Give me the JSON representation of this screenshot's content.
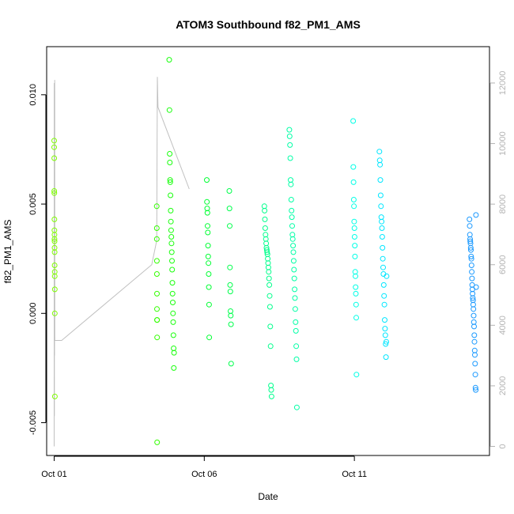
{
  "chart_data": {
    "type": "scatter",
    "title": "ATOM3 Southbound f82_PM1_AMS",
    "xlabel": "Date",
    "ylabel": "f82_PM1_AMS",
    "x_domain": [
      "2011-09-30T18:00",
      "2011-10-15T12:00"
    ],
    "ylim": [
      -0.0065,
      0.0122
    ],
    "y_ticks": [
      -0.005,
      0.0,
      0.005,
      0.01
    ],
    "y_tick_labels": [
      "-0.005",
      "0.000",
      "0.005",
      "0.010"
    ],
    "x_ticks": [
      "2011-10-01",
      "2011-10-06",
      "2011-10-11"
    ],
    "x_tick_labels": [
      "Oct 01",
      "Oct 06",
      "Oct 11"
    ],
    "y2lim": [
      -300,
      13200
    ],
    "y2_ticks": [
      0,
      2000,
      4000,
      6000,
      8000,
      10000,
      12000
    ],
    "y2_tick_labels": [
      "0",
      "2000",
      "4000",
      "6000",
      "8000",
      "10000",
      "12000"
    ],
    "y2_color": "#b3b3b3",
    "grid": false,
    "colors": {
      "Oct 01": "#7fff00",
      "Oct 04": "#33ff00",
      "Oct 05": "#19ff0d",
      "Oct 06": "#00ff33",
      "Oct 07": "#00ff4c",
      "Oct 08": "#00ff8c",
      "Oct 09": "#00ffa6",
      "Oct 11": "#00ffe6",
      "Oct 12": "#00e6ff",
      "Oct 14": "#1a99ff"
    },
    "series": [
      {
        "key": "Oct 01",
        "x": [
          "2011-10-01T00:00",
          "2011-10-01T00:02",
          "2011-10-01T00:04",
          "2011-10-01T00:06",
          "2011-10-01T00:08",
          "2011-10-01T00:10",
          "2011-10-01T00:12",
          "2011-10-01T00:14",
          "2011-10-01T00:16",
          "2011-10-01T00:18",
          "2011-10-01T00:20",
          "2011-10-01T00:22",
          "2011-10-01T00:24",
          "2011-10-01T00:26",
          "2011-10-01T00:28",
          "2011-10-01T00:30",
          "2011-10-01T00:32",
          "2011-10-01T00:34"
        ],
        "y": [
          0.0079,
          0.0076,
          0.0071,
          0.0056,
          0.0055,
          0.0043,
          0.0038,
          0.0036,
          0.0034,
          0.0033,
          0.003,
          0.0028,
          0.0022,
          0.0019,
          0.0017,
          0.0011,
          0.0,
          -0.0038
        ]
      },
      {
        "key": "Oct 04",
        "x": [
          "2011-10-04T10:00",
          "2011-10-04T10:02",
          "2011-10-04T10:04",
          "2011-10-04T10:06",
          "2011-10-04T10:08",
          "2011-10-04T10:10",
          "2011-10-04T10:12",
          "2011-10-04T10:14",
          "2011-10-04T10:16",
          "2011-10-04T10:18",
          "2011-10-04T10:20"
        ],
        "y": [
          0.0049,
          0.0039,
          0.0034,
          0.0024,
          0.0018,
          0.0009,
          0.0002,
          -0.0003,
          -0.0003,
          -0.0011,
          -0.0059
        ]
      },
      {
        "key": "Oct 05",
        "x": [
          "2011-10-04T20:00",
          "2011-10-04T20:10",
          "2011-10-04T20:20",
          "2011-10-04T20:30",
          "2011-10-04T20:40",
          "2011-10-04T20:50",
          "2011-10-04T21:00",
          "2011-10-04T21:10",
          "2011-10-04T21:20",
          "2011-10-04T21:30",
          "2011-10-04T21:40",
          "2011-10-04T21:50",
          "2011-10-04T22:00",
          "2011-10-04T22:10",
          "2011-10-04T22:20",
          "2011-10-04T22:30",
          "2011-10-04T22:40",
          "2011-10-04T22:50",
          "2011-10-04T23:00",
          "2011-10-04T23:10",
          "2011-10-04T23:20",
          "2011-10-04T23:30",
          "2011-10-04T23:40",
          "2011-10-04T23:50"
        ],
        "y": [
          0.0116,
          0.0093,
          0.0073,
          0.0069,
          0.0061,
          0.006,
          0.0054,
          0.0047,
          0.0042,
          0.0038,
          0.0035,
          0.0032,
          0.0028,
          0.0024,
          0.002,
          0.0014,
          0.0009,
          0.0005,
          0.0,
          -0.0004,
          -0.001,
          -0.0016,
          -0.0025,
          -0.0018
        ]
      },
      {
        "key": "Oct 06",
        "x": [
          "2011-10-06T02:00",
          "2011-10-06T02:10",
          "2011-10-06T02:20",
          "2011-10-06T02:30",
          "2011-10-06T02:40",
          "2011-10-06T02:50",
          "2011-10-06T03:00",
          "2011-10-06T03:10",
          "2011-10-06T03:20",
          "2011-10-06T03:30",
          "2011-10-06T03:40",
          "2011-10-06T03:50",
          "2011-10-06T04:00"
        ],
        "y": [
          0.0061,
          0.0051,
          0.0048,
          0.0046,
          0.004,
          0.0037,
          0.0031,
          0.0026,
          0.0023,
          0.0018,
          0.0012,
          0.0004,
          -0.0011
        ]
      },
      {
        "key": "Oct 07",
        "x": [
          "2011-10-06T20:00",
          "2011-10-06T20:10",
          "2011-10-06T20:20",
          "2011-10-06T20:30",
          "2011-10-06T20:40",
          "2011-10-06T20:50",
          "2011-10-06T21:00",
          "2011-10-06T21:10",
          "2011-10-06T21:20",
          "2011-10-06T21:30"
        ],
        "y": [
          0.0056,
          0.0048,
          0.004,
          0.0021,
          0.0013,
          0.001,
          0.0001,
          -0.0001,
          -0.0005,
          -0.0023
        ]
      },
      {
        "key": "Oct 08",
        "x": [
          "2011-10-08T00:00",
          "2011-10-08T00:15",
          "2011-10-08T00:30",
          "2011-10-08T00:45",
          "2011-10-08T01:00",
          "2011-10-08T01:15",
          "2011-10-08T01:30",
          "2011-10-08T01:45",
          "2011-10-08T02:00",
          "2011-10-08T02:15",
          "2011-10-08T02:30",
          "2011-10-08T02:45",
          "2011-10-08T03:00",
          "2011-10-08T03:15",
          "2011-10-08T03:30",
          "2011-10-08T03:45",
          "2011-10-08T04:00",
          "2011-10-08T04:15",
          "2011-10-08T04:30",
          "2011-10-08T04:45",
          "2011-10-08T05:00",
          "2011-10-08T05:15",
          "2011-10-08T05:30",
          "2011-10-08T05:45"
        ],
        "y": [
          0.0049,
          0.0047,
          0.0043,
          0.0039,
          0.0036,
          0.0034,
          0.0032,
          0.003,
          0.0029,
          0.0028,
          0.0027,
          0.0025,
          0.0023,
          0.0021,
          0.0019,
          0.0016,
          0.0013,
          0.0008,
          0.0003,
          -0.0006,
          -0.0015,
          -0.0033,
          -0.0035,
          -0.0038
        ]
      },
      {
        "key": "Oct 09",
        "x": [
          "2011-10-08T20:00",
          "2011-10-08T20:15",
          "2011-10-08T20:30",
          "2011-10-08T20:45",
          "2011-10-08T21:00",
          "2011-10-08T21:15",
          "2011-10-08T21:30",
          "2011-10-08T21:45",
          "2011-10-08T22:00",
          "2011-10-08T22:15",
          "2011-10-08T22:30",
          "2011-10-08T22:45",
          "2011-10-08T23:00",
          "2011-10-08T23:15",
          "2011-10-08T23:30",
          "2011-10-08T23:45",
          "2011-10-09T00:00",
          "2011-10-09T00:15",
          "2011-10-09T00:30",
          "2011-10-09T00:45",
          "2011-10-09T01:00",
          "2011-10-09T01:15",
          "2011-10-09T01:30",
          "2011-10-09T01:45",
          "2011-10-09T02:00"
        ],
        "y": [
          0.0084,
          0.0081,
          0.0077,
          0.0071,
          0.0061,
          0.0059,
          0.0052,
          0.0047,
          0.0044,
          0.004,
          0.0036,
          0.0034,
          0.0031,
          0.0028,
          0.0024,
          0.002,
          0.0016,
          0.0011,
          0.0007,
          0.0002,
          -0.0004,
          -0.0008,
          -0.0015,
          -0.0021,
          -0.0043
        ]
      },
      {
        "key": "Oct 11",
        "x": [
          "2011-10-10T23:00",
          "2011-10-10T23:10",
          "2011-10-10T23:20",
          "2011-10-10T23:30",
          "2011-10-10T23:40",
          "2011-10-10T23:50",
          "2011-10-11T00:00",
          "2011-10-11T00:10",
          "2011-10-11T00:20",
          "2011-10-11T00:30",
          "2011-10-11T00:40",
          "2011-10-11T00:50",
          "2011-10-11T01:00",
          "2011-10-11T01:10",
          "2011-10-11T01:20",
          "2011-10-11T01:30",
          "2011-10-11T01:40"
        ],
        "y": [
          0.0088,
          0.0067,
          0.006,
          0.0052,
          0.0049,
          0.0042,
          0.0039,
          0.0035,
          0.0031,
          0.0026,
          0.0019,
          0.0017,
          0.0012,
          0.0009,
          0.0004,
          -0.0002,
          -0.0028
        ]
      },
      {
        "key": "Oct 12",
        "x": [
          "2011-10-11T20:00",
          "2011-10-11T20:15",
          "2011-10-11T20:30",
          "2011-10-11T20:45",
          "2011-10-11T21:00",
          "2011-10-11T21:15",
          "2011-10-11T21:30",
          "2011-10-11T21:45",
          "2011-10-11T22:00",
          "2011-10-11T22:15",
          "2011-10-11T22:30",
          "2011-10-11T22:45",
          "2011-10-11T23:00",
          "2011-10-11T23:15",
          "2011-10-11T23:30",
          "2011-10-11T23:45",
          "2011-10-12T00:00",
          "2011-10-12T00:15",
          "2011-10-12T00:30",
          "2011-10-12T00:45",
          "2011-10-12T01:00",
          "2011-10-12T01:15",
          "2011-10-12T01:30",
          "2011-10-12T01:45"
        ],
        "y": [
          0.0074,
          0.007,
          0.0068,
          0.0061,
          0.0054,
          0.0049,
          0.0044,
          0.0042,
          0.0039,
          0.0035,
          0.003,
          0.0025,
          0.0021,
          0.0018,
          0.0013,
          0.0008,
          0.0004,
          -0.0003,
          -0.0007,
          -0.001,
          -0.0014,
          -0.002,
          -0.0013,
          0.0017
        ]
      },
      {
        "key": "Oct 14",
        "x": [
          "2011-10-14T20:00",
          "2011-10-14T20:10",
          "2011-10-14T20:20",
          "2011-10-14T20:30",
          "2011-10-14T20:40",
          "2011-10-14T20:50",
          "2011-10-14T21:00",
          "2011-10-14T21:10",
          "2011-10-14T21:20",
          "2011-10-14T21:30",
          "2011-10-14T21:40",
          "2011-10-14T21:50",
          "2011-10-14T22:00",
          "2011-10-14T22:10",
          "2011-10-14T22:20",
          "2011-10-14T22:30",
          "2011-10-14T22:40",
          "2011-10-14T22:50",
          "2011-10-14T23:00",
          "2011-10-14T23:10",
          "2011-10-14T23:20",
          "2011-10-14T23:30",
          "2011-10-14T23:40",
          "2011-10-14T23:50",
          "2011-10-15T00:00",
          "2011-10-15T00:10",
          "2011-10-15T00:20",
          "2011-10-15T00:30",
          "2011-10-15T00:40",
          "2011-10-15T00:50",
          "2011-10-15T01:00",
          "2011-10-15T01:10",
          "2011-10-15T01:20"
        ],
        "y": [
          0.0043,
          0.004,
          0.0036,
          0.0034,
          0.0033,
          0.0032,
          0.003,
          0.0029,
          0.0026,
          0.0025,
          0.0022,
          0.0019,
          0.0016,
          0.0013,
          0.0011,
          0.0009,
          0.0007,
          0.0006,
          0.0004,
          0.0002,
          -0.0001,
          -0.0004,
          -0.0006,
          -0.001,
          -0.0013,
          -0.0017,
          -0.0019,
          -0.0023,
          -0.0028,
          -0.0034,
          -0.0035,
          0.0045,
          0.0012
        ]
      }
    ],
    "secondary_series": [
      {
        "key": "segments",
        "color": "#c0c0c0",
        "points": [
          [
            "2011-10-01T00:00",
            0
          ],
          [
            "2011-10-01T00:05",
            12000
          ],
          [
            "2011-10-01T00:10",
            1000
          ],
          [
            "2011-10-01T00:15",
            11500
          ],
          [
            "2011-10-01T00:20",
            3000
          ],
          [
            "2011-10-01T00:25",
            12100
          ],
          [
            "2011-10-01T00:30",
            3500
          ],
          [
            "2011-10-01T06:00",
            3500
          ],
          [
            "2011-10-04T06:00",
            6000
          ],
          [
            "2011-10-04T10:00",
            6800
          ],
          [
            "2011-10-04T10:30",
            12200
          ],
          [
            "2011-10-04T11:00",
            11200
          ],
          [
            "2011-10-05T12:00",
            8500
          ]
        ]
      }
    ]
  }
}
